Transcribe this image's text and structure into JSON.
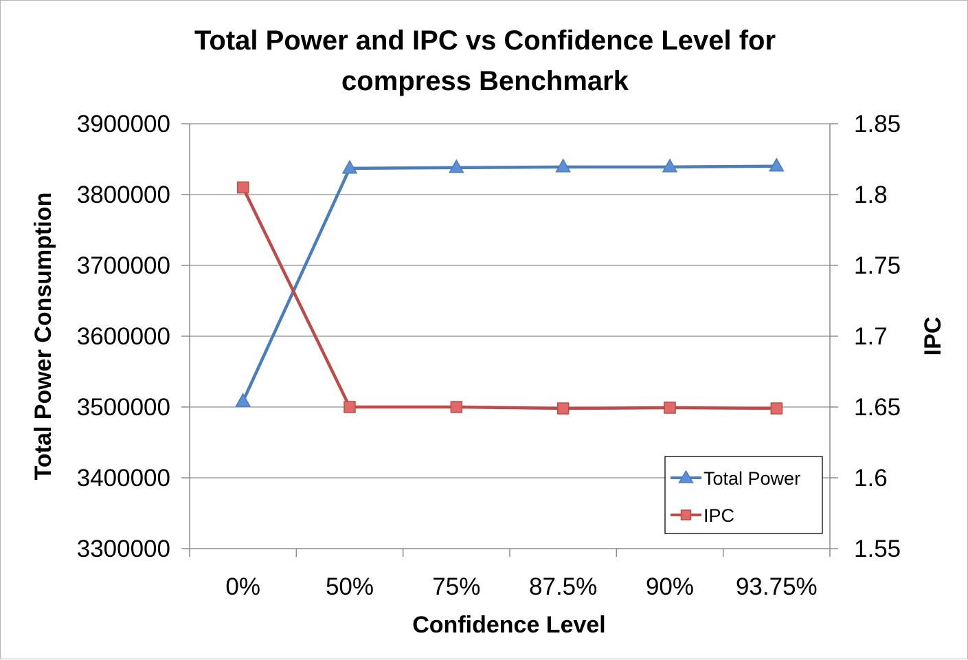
{
  "chart_data": {
    "type": "line",
    "title_lines": [
      "Total Power and IPC vs Confidence Level for",
      "compress Benchmark"
    ],
    "xlabel": "Confidence Level",
    "ylabel": "Total Power Consumption",
    "y2label": "IPC",
    "categories": [
      "0%",
      "50%",
      "75%",
      "87.5%",
      "90%",
      "93.75%"
    ],
    "ylim": [
      3300000,
      3900000
    ],
    "y_ticks": [
      "3300000",
      "3400000",
      "3500000",
      "3600000",
      "3700000",
      "3800000",
      "3900000"
    ],
    "y2lim": [
      1.55,
      1.85
    ],
    "y2_ticks": [
      "1.55",
      "1.6",
      "1.65",
      "1.7",
      "1.75",
      "1.8",
      "1.85"
    ],
    "grid": true,
    "legend_position": "bottom-right",
    "series": [
      {
        "name": "Total Power",
        "axis": "left",
        "marker": "triangle",
        "color": "#4a7ebb",
        "marker_fill": "#5b8fd6",
        "values": [
          3508000,
          3837000,
          3838000,
          3839000,
          3839000,
          3840000
        ]
      },
      {
        "name": "IPC",
        "axis": "right",
        "marker": "square",
        "color": "#be4b48",
        "marker_fill": "#e06a67",
        "values": [
          1.805,
          1.65,
          1.65,
          1.649,
          1.6495,
          1.649
        ]
      }
    ]
  }
}
